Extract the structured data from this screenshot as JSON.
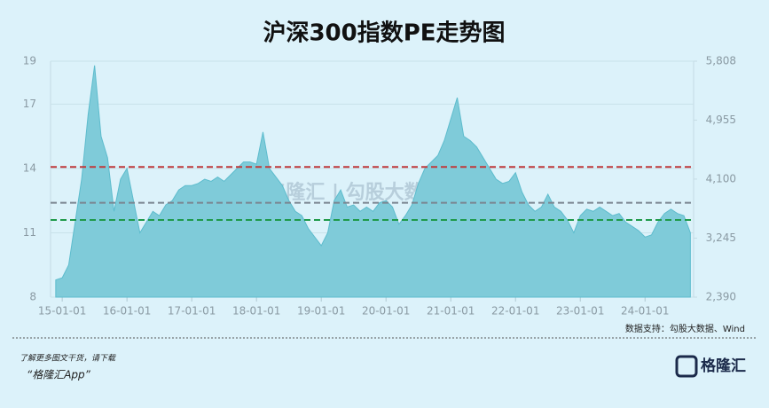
{
  "chart_data": {
    "type": "area",
    "title": "沪深300指数PE走势图",
    "x": [
      2014.9,
      2015.0,
      2015.1,
      2015.2,
      2015.3,
      2015.4,
      2015.5,
      2015.6,
      2015.7,
      2015.8,
      2015.9,
      2016.0,
      2016.1,
      2016.2,
      2016.3,
      2016.4,
      2016.5,
      2016.6,
      2016.7,
      2016.8,
      2016.9,
      2017.0,
      2017.1,
      2017.2,
      2017.3,
      2017.4,
      2017.5,
      2017.6,
      2017.7,
      2017.8,
      2017.9,
      2018.0,
      2018.1,
      2018.2,
      2018.3,
      2018.4,
      2018.5,
      2018.6,
      2018.7,
      2018.8,
      2018.9,
      2019.0,
      2019.1,
      2019.2,
      2019.3,
      2019.4,
      2019.5,
      2019.6,
      2019.7,
      2019.8,
      2019.9,
      2020.0,
      2020.1,
      2020.2,
      2020.3,
      2020.4,
      2020.5,
      2020.6,
      2020.7,
      2020.8,
      2020.9,
      2021.0,
      2021.1,
      2021.2,
      2021.3,
      2021.4,
      2021.5,
      2021.6,
      2021.7,
      2021.8,
      2021.9,
      2022.0,
      2022.1,
      2022.2,
      2022.3,
      2022.4,
      2022.5,
      2022.6,
      2022.7,
      2022.8,
      2022.9,
      2023.0,
      2023.1,
      2023.2,
      2023.3,
      2023.4,
      2023.5,
      2023.6,
      2023.7,
      2023.8,
      2023.9,
      2024.0,
      2024.1,
      2024.2,
      2024.3,
      2024.4,
      2024.5,
      2024.6,
      2024.7
    ],
    "values": [
      8.8,
      8.9,
      9.5,
      11.5,
      13.5,
      16.5,
      18.8,
      15.5,
      14.5,
      12.0,
      13.5,
      14.0,
      12.5,
      11.0,
      11.5,
      12.0,
      11.8,
      12.3,
      12.5,
      13.0,
      13.2,
      13.2,
      13.3,
      13.5,
      13.4,
      13.6,
      13.4,
      13.7,
      14.0,
      14.3,
      14.3,
      14.2,
      15.7,
      14.0,
      13.6,
      13.2,
      12.5,
      12.0,
      11.8,
      11.2,
      10.8,
      10.4,
      11.0,
      12.5,
      13.0,
      12.2,
      12.3,
      12.0,
      12.2,
      12.0,
      12.4,
      12.5,
      12.2,
      11.4,
      11.8,
      12.3,
      13.3,
      14.0,
      14.3,
      14.6,
      15.3,
      16.3,
      17.3,
      15.5,
      15.3,
      15.0,
      14.5,
      14.0,
      13.5,
      13.3,
      13.4,
      13.8,
      12.9,
      12.3,
      12.0,
      12.2,
      12.8,
      12.2,
      12.0,
      11.6,
      11.0,
      11.8,
      12.1,
      12.0,
      12.2,
      12.0,
      11.8,
      11.9,
      11.5,
      11.3,
      11.1,
      10.8,
      10.9,
      11.5,
      11.9,
      12.1,
      11.9,
      11.8,
      11.0
    ],
    "color": "#7fcbd9",
    "xlim": [
      2014.82,
      2024.75
    ],
    "xticks": [
      {
        "value": 2015,
        "label": "15-01-01"
      },
      {
        "value": 2016,
        "label": "16-01-01"
      },
      {
        "value": 2017,
        "label": "17-01-01"
      },
      {
        "value": 2018,
        "label": "18-01-01"
      },
      {
        "value": 2019,
        "label": "19-01-01"
      },
      {
        "value": 2020,
        "label": "20-01-01"
      },
      {
        "value": 2021,
        "label": "21-01-01"
      },
      {
        "value": 2022,
        "label": "22-01-01"
      },
      {
        "value": 2023,
        "label": "23-01-01"
      },
      {
        "value": 2024,
        "label": "24-01-01"
      }
    ],
    "ylim": [
      8,
      19
    ],
    "yticks": [
      8,
      11,
      14,
      17,
      19
    ],
    "y2lim": [
      2390,
      5808
    ],
    "y2ticks": [
      {
        "value": 2390,
        "label": "2,390"
      },
      {
        "value": 3245,
        "label": "3,245"
      },
      {
        "value": 4100,
        "label": "4,100"
      },
      {
        "value": 4955,
        "label": "4,955"
      },
      {
        "value": 5808,
        "label": "5,808"
      }
    ],
    "hlines": [
      {
        "value": 14.07,
        "color": "#c0393b"
      },
      {
        "value": 12.4,
        "color": "#7a8590"
      },
      {
        "value": 11.6,
        "color": "#1f9a4a"
      }
    ],
    "grid": true
  },
  "footer": {
    "source": "数据支持：勾股大数据、Wind",
    "promo": "了解更多图文干货，请下载",
    "app": "“格隆汇App”",
    "logo": "格隆汇",
    "watermark": "格隆汇 | 勾股大数据"
  }
}
